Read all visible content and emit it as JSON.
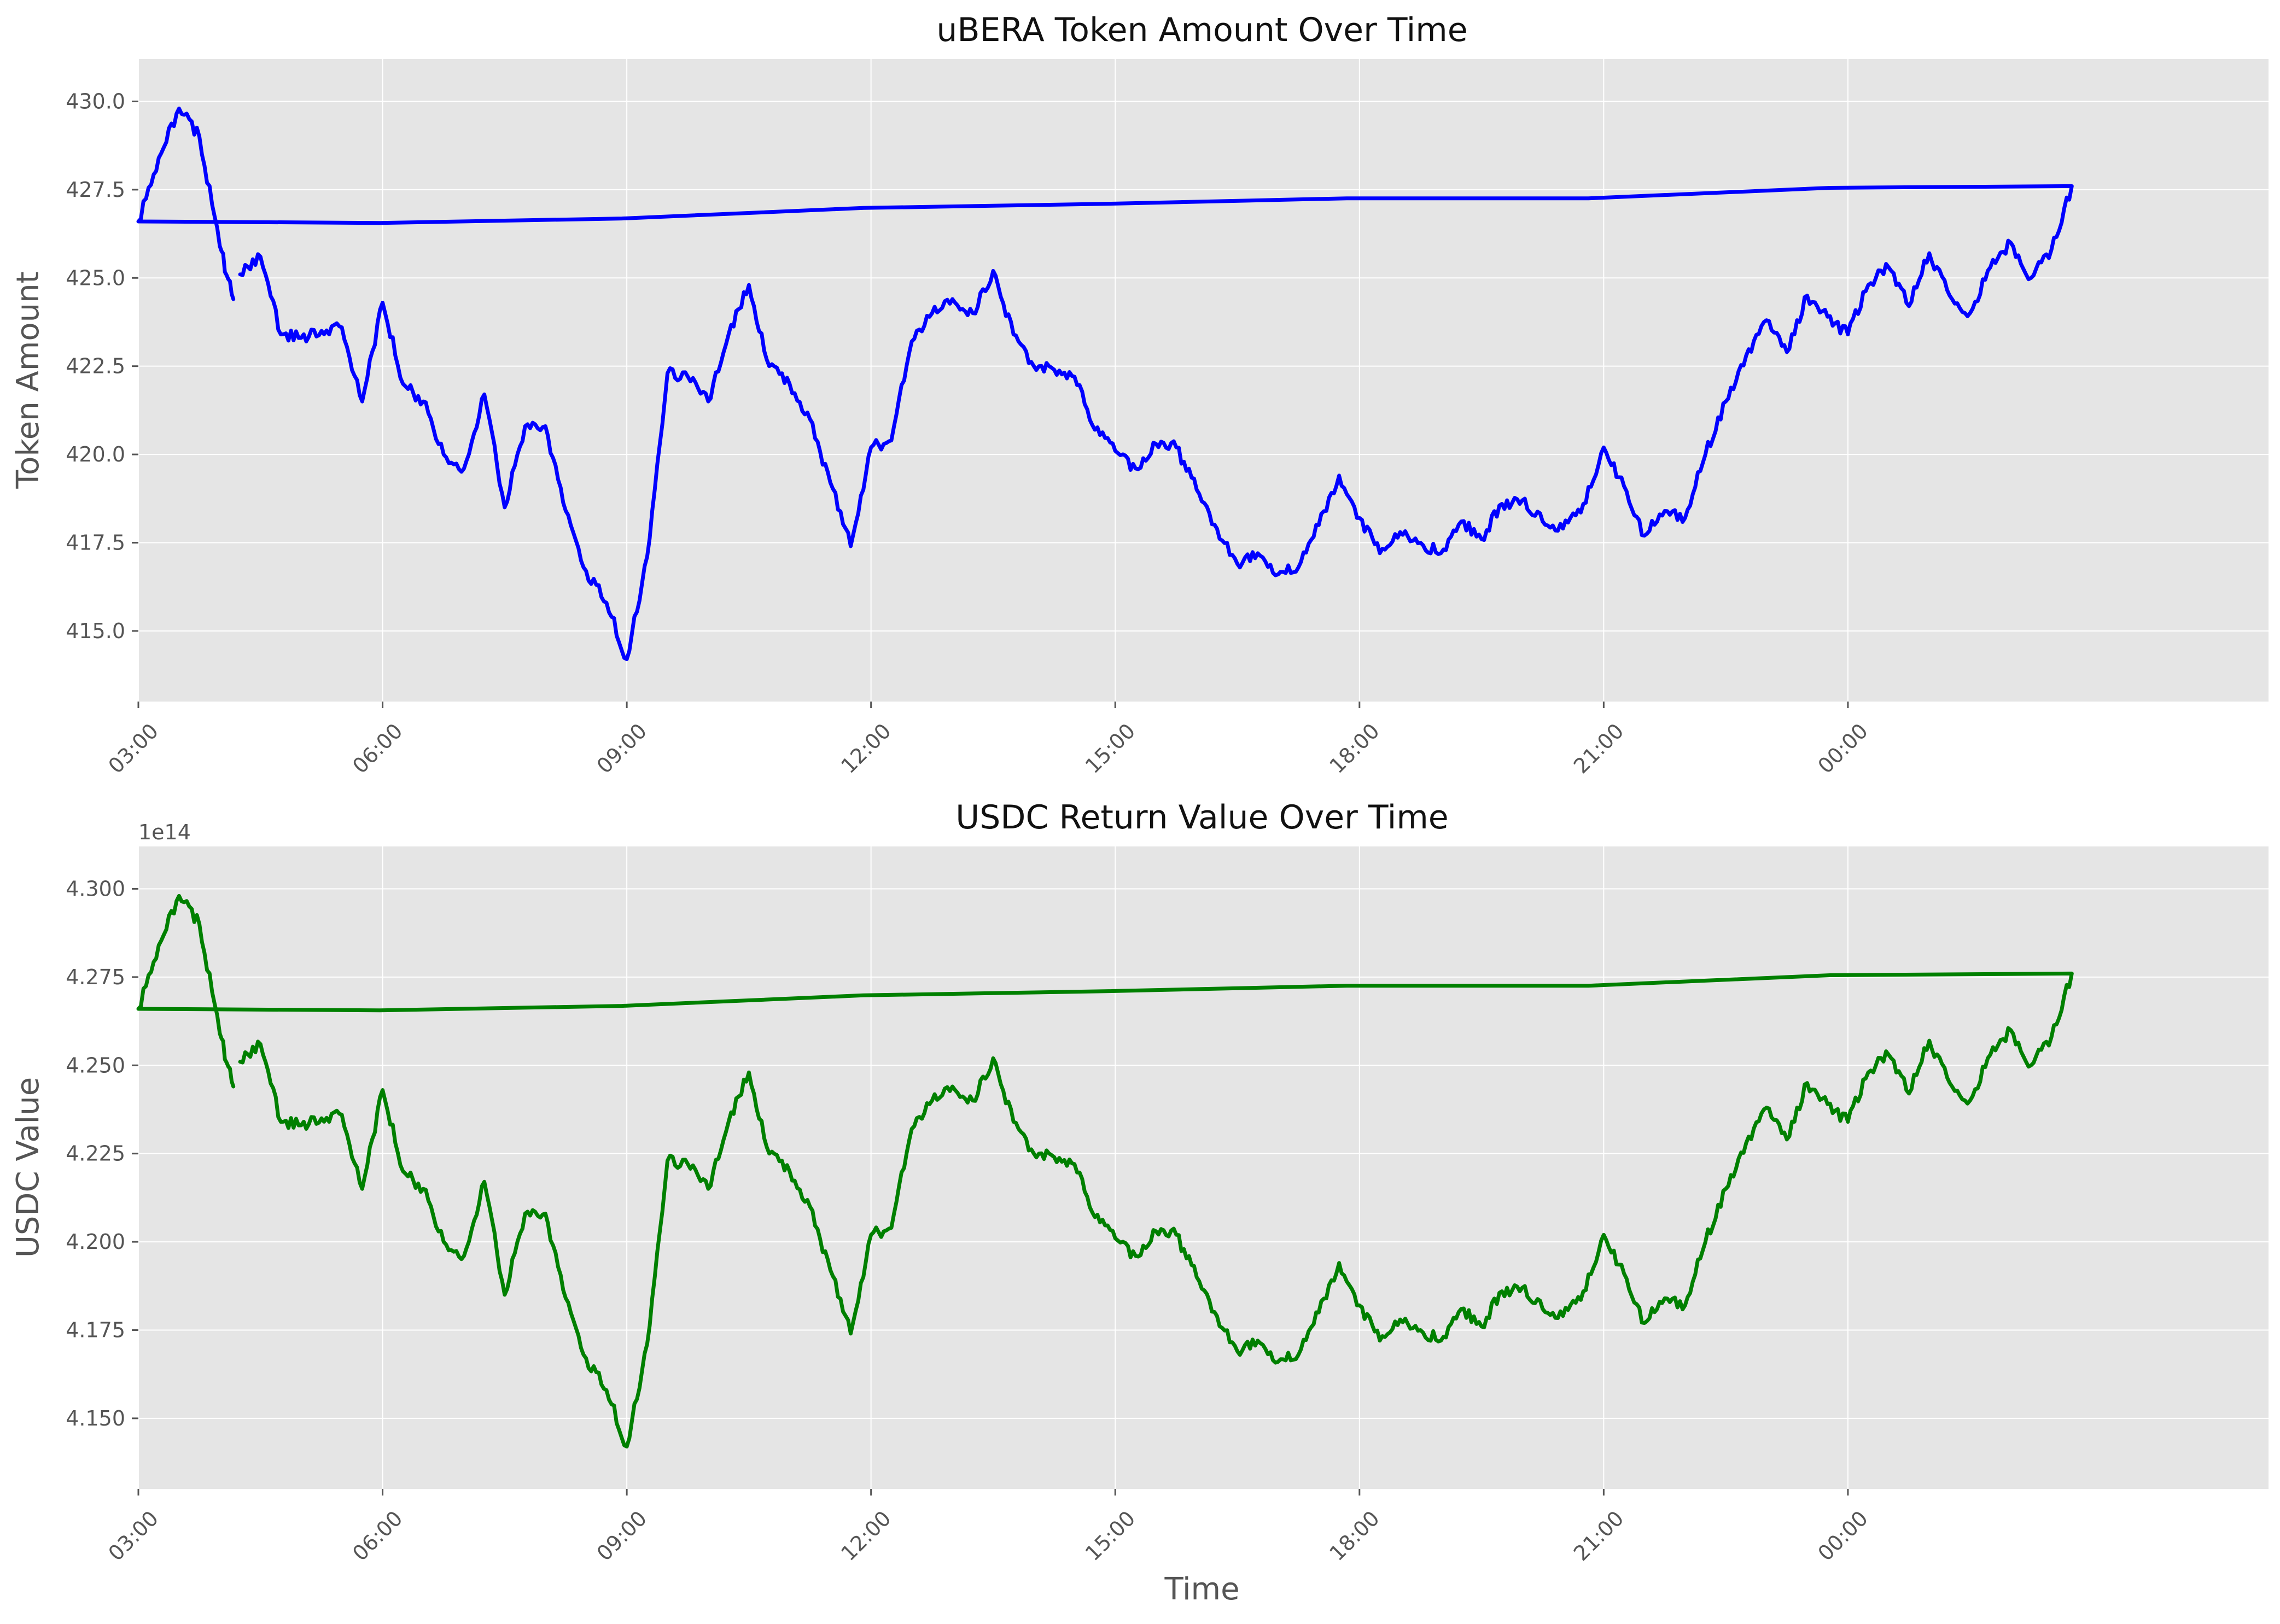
{
  "chart_data": [
    {
      "type": "line",
      "title": "uBERA Token Amount Over Time",
      "xlabel": "",
      "ylabel": "Token Amount",
      "y_ticks": [
        "415.0",
        "417.5",
        "420.0",
        "422.5",
        "425.0",
        "427.5",
        "430.0"
      ],
      "x_ticks": [
        "06:00",
        "09:00",
        "12:00",
        "15:00",
        "18:00",
        "21:00",
        "00:00",
        "03:00"
      ],
      "ylim": [
        413.0,
        431.2
      ],
      "line_color": "#0000ff",
      "grid": true,
      "series": [
        {
          "x": [
            "04:15",
            "04:30",
            "04:45",
            "05:00",
            "05:15",
            "05:30",
            "05:45",
            "06:00",
            "06:15",
            "06:30",
            "06:45",
            "07:00",
            "07:15",
            "07:30",
            "07:45",
            "08:00",
            "08:15",
            "08:30",
            "08:45",
            "09:00",
            "09:15",
            "09:30",
            "09:45",
            "10:00",
            "10:15",
            "10:30",
            "10:45",
            "11:00",
            "11:15",
            "11:30",
            "11:45",
            "12:00",
            "12:15",
            "12:30",
            "12:45",
            "13:00",
            "13:15",
            "13:30",
            "13:45",
            "14:00",
            "14:15",
            "14:30",
            "14:45",
            "15:00",
            "15:15",
            "15:30",
            "15:45",
            "16:00",
            "16:15",
            "16:30",
            "16:45",
            "17:00",
            "17:15",
            "17:30",
            "17:45",
            "18:00",
            "18:15",
            "18:30",
            "18:45",
            "19:00",
            "19:15",
            "19:30",
            "19:45",
            "20:00",
            "20:15",
            "20:30",
            "20:45",
            "21:00",
            "21:15",
            "21:30",
            "21:45",
            "22:00",
            "22:15",
            "22:30",
            "22:45",
            "23:00",
            "23:15",
            "23:30",
            "23:45",
            "00:00",
            "00:15",
            "00:30",
            "00:45",
            "01:00",
            "01:15",
            "01:30",
            "01:45",
            "02:00",
            "02:15",
            "02:30",
            "02:45",
            "03:00",
            "03:15",
            "03:30",
            "03:45",
            "04:00",
            "04:10"
          ],
          "values": [
            425.1,
            425.6,
            423.4,
            423.3,
            423.5,
            423.6,
            421.5,
            424.3,
            422.0,
            421.5,
            420.0,
            419.6,
            421.7,
            418.5,
            420.8,
            420.8,
            418.4,
            416.7,
            415.8,
            414.2,
            417.1,
            422.3,
            422.2,
            421.5,
            423.4,
            424.8,
            422.5,
            422.0,
            421.0,
            419.2,
            417.4,
            420.2,
            420.4,
            423.2,
            424.0,
            424.4,
            424.0,
            425.2,
            423.4,
            422.5,
            422.4,
            422.2,
            420.7,
            420.1,
            419.6,
            420.3,
            420.2,
            419.0,
            417.9,
            416.9,
            417.2,
            416.6,
            416.8,
            418.0,
            419.4,
            418.2,
            417.2,
            417.8,
            417.5,
            417.2,
            418.1,
            417.6,
            418.6,
            418.7,
            418.1,
            417.9,
            418.6,
            420.2,
            419.1,
            417.7,
            418.4,
            418.2,
            420.0,
            421.5,
            422.8,
            423.8,
            422.9,
            424.5,
            423.9,
            423.4,
            424.8,
            425.3,
            424.2,
            425.7,
            424.5,
            424.0,
            425.3,
            426.0,
            425.0,
            425.8,
            427.6,
            426.6,
            428.4,
            429.8,
            429.0,
            425.9,
            424.4
          ]
        }
      ]
    },
    {
      "type": "line",
      "title": "USDC Return Value Over Time",
      "xlabel": "Time",
      "ylabel": "USDC Value",
      "offset_text": "1e14",
      "y_ticks": [
        "4.150",
        "4.175",
        "4.200",
        "4.225",
        "4.250",
        "4.275",
        "4.300"
      ],
      "x_ticks": [
        "06:00",
        "09:00",
        "12:00",
        "15:00",
        "18:00",
        "21:00",
        "00:00",
        "03:00"
      ],
      "ylim": [
        4.13,
        4.312
      ],
      "line_color": "#008000",
      "grid": true,
      "series": [
        {
          "x": [
            "04:15",
            "04:30",
            "04:45",
            "05:00",
            "05:15",
            "05:30",
            "05:45",
            "06:00",
            "06:15",
            "06:30",
            "06:45",
            "07:00",
            "07:15",
            "07:30",
            "07:45",
            "08:00",
            "08:15",
            "08:30",
            "08:45",
            "09:00",
            "09:15",
            "09:30",
            "09:45",
            "10:00",
            "10:15",
            "10:30",
            "10:45",
            "11:00",
            "11:15",
            "11:30",
            "11:45",
            "12:00",
            "12:15",
            "12:30",
            "12:45",
            "13:00",
            "13:15",
            "13:30",
            "13:45",
            "14:00",
            "14:15",
            "14:30",
            "14:45",
            "15:00",
            "15:15",
            "15:30",
            "15:45",
            "16:00",
            "16:15",
            "16:30",
            "16:45",
            "17:00",
            "17:15",
            "17:30",
            "17:45",
            "18:00",
            "18:15",
            "18:30",
            "18:45",
            "19:00",
            "19:15",
            "19:30",
            "19:45",
            "20:00",
            "20:15",
            "20:30",
            "20:45",
            "21:00",
            "21:15",
            "21:30",
            "21:45",
            "22:00",
            "22:15",
            "22:30",
            "22:45",
            "23:00",
            "23:15",
            "23:30",
            "23:45",
            "00:00",
            "00:15",
            "00:30",
            "00:45",
            "01:00",
            "01:15",
            "01:30",
            "01:45",
            "02:00",
            "02:15",
            "02:30",
            "02:45",
            "03:00",
            "03:15",
            "03:30",
            "03:45",
            "04:00",
            "04:10"
          ],
          "values": [
            4.251,
            4.256,
            4.234,
            4.233,
            4.235,
            4.236,
            4.215,
            4.243,
            4.22,
            4.215,
            4.2,
            4.196,
            4.217,
            4.185,
            4.208,
            4.208,
            4.184,
            4.167,
            4.158,
            4.142,
            4.171,
            4.223,
            4.222,
            4.215,
            4.234,
            4.248,
            4.225,
            4.22,
            4.21,
            4.192,
            4.174,
            4.202,
            4.204,
            4.232,
            4.24,
            4.244,
            4.24,
            4.252,
            4.234,
            4.225,
            4.224,
            4.222,
            4.207,
            4.201,
            4.196,
            4.203,
            4.202,
            4.19,
            4.179,
            4.169,
            4.172,
            4.166,
            4.168,
            4.18,
            4.194,
            4.182,
            4.172,
            4.178,
            4.175,
            4.172,
            4.181,
            4.176,
            4.186,
            4.187,
            4.181,
            4.179,
            4.186,
            4.202,
            4.191,
            4.177,
            4.184,
            4.182,
            4.2,
            4.215,
            4.228,
            4.238,
            4.229,
            4.245,
            4.239,
            4.234,
            4.248,
            4.253,
            4.242,
            4.257,
            4.245,
            4.24,
            4.253,
            4.26,
            4.25,
            4.258,
            4.276,
            4.266,
            4.284,
            4.298,
            4.29,
            4.259,
            4.244
          ]
        }
      ]
    }
  ]
}
